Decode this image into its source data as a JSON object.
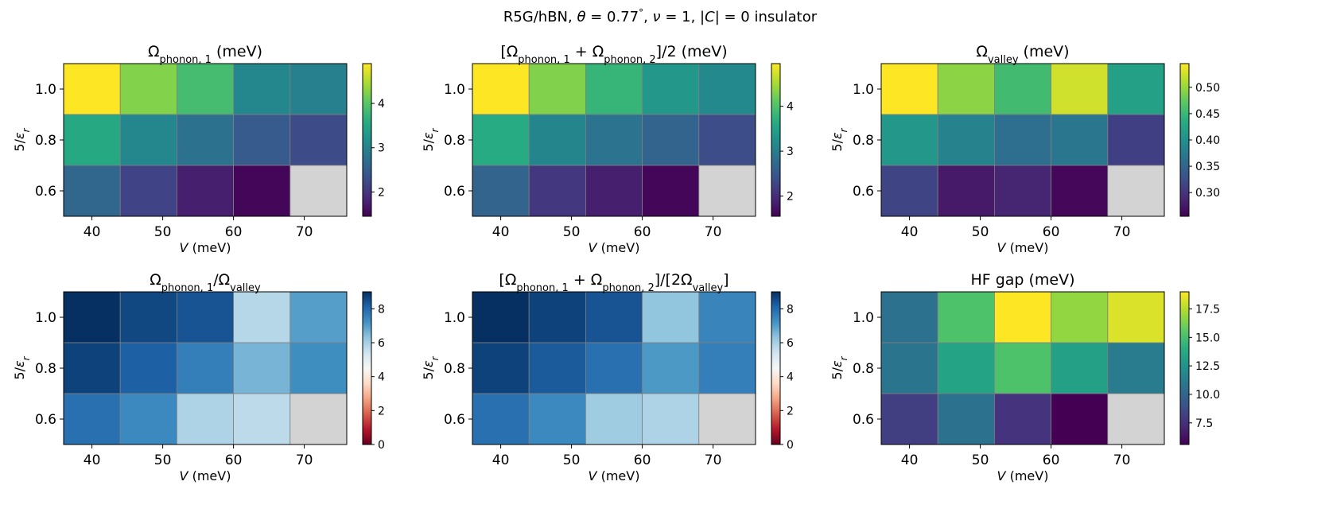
{
  "figure": {
    "title_parts": [
      "R5G/hBN, ",
      "θ",
      " = 0.77",
      "°",
      ",  ",
      "ν",
      " = 1,  |",
      "C",
      "| = 0 insulator"
    ]
  },
  "chart_data": [
    {
      "type": "heatmap",
      "title_main": "Ω",
      "title_sub": "phonon, 1",
      "title_tail": " (meV)",
      "xlabel_italic": "V",
      "xlabel_tail": " (meV)",
      "ylabel_main": "5/",
      "ylabel_italic": "ε",
      "ylabel_sub": "r",
      "x": [
        "40",
        "50",
        "60",
        "70"
      ],
      "x_values": [
        40,
        45,
        55,
        65,
        75
      ],
      "y": [
        "1.0",
        "0.8",
        "0.6"
      ],
      "y_values": [
        1.0,
        0.8,
        0.6
      ],
      "values": [
        [
          4.9,
          4.25,
          3.85,
          3.05,
          2.95
        ],
        [
          3.55,
          3.05,
          2.75,
          2.45,
          2.25
        ],
        [
          2.6,
          2.15,
          1.75,
          1.5,
          null
        ]
      ],
      "colormap": "viridis",
      "vlim": [
        1.45,
        4.9
      ],
      "colorbar_ticks": [
        2,
        3,
        4
      ],
      "colorbar_labels": [
        "2",
        "3",
        "4"
      ]
    },
    {
      "type": "heatmap",
      "title_main": "[Ω",
      "title_sub": "phonon, 1",
      "title_mid": " + Ω",
      "title_sub2": "phonon, 2",
      "title_tail": "]/2 (meV)",
      "xlabel_italic": "V",
      "xlabel_tail": " (meV)",
      "ylabel_main": "5/",
      "ylabel_italic": "ε",
      "ylabel_sub": "r",
      "x": [
        "40",
        "50",
        "60",
        "70"
      ],
      "x_values": [
        40,
        45,
        55,
        65,
        75
      ],
      "y": [
        "1.0",
        "0.8",
        "0.6"
      ],
      "y_values": [
        1.0,
        0.8,
        0.6
      ],
      "values": [
        [
          4.95,
          4.3,
          3.8,
          3.35,
          3.15
        ],
        [
          3.65,
          3.1,
          2.85,
          2.65,
          2.35
        ],
        [
          2.65,
          2.1,
          1.85,
          1.6,
          null
        ]
      ],
      "colormap": "viridis",
      "vlim": [
        1.55,
        4.95
      ],
      "colorbar_ticks": [
        2,
        3,
        4
      ],
      "colorbar_labels": [
        "2",
        "3",
        "4"
      ]
    },
    {
      "type": "heatmap",
      "title_main": "Ω",
      "title_sub": "valley",
      "title_tail": " (meV)",
      "xlabel_italic": "V",
      "xlabel_tail": " (meV)",
      "ylabel_main": "5/",
      "ylabel_italic": "ε",
      "ylabel_sub": "r",
      "x": [
        "40",
        "50",
        "60",
        "70"
      ],
      "x_values": [
        40,
        45,
        55,
        65,
        75
      ],
      "y": [
        "1.0",
        "0.8",
        "0.6"
      ],
      "y_values": [
        1.0,
        0.8,
        0.6
      ],
      "values": [
        [
          0.545,
          0.495,
          0.455,
          0.525,
          0.42
        ],
        [
          0.41,
          0.385,
          0.36,
          0.37,
          0.31
        ],
        [
          0.315,
          0.275,
          0.285,
          0.26,
          null
        ]
      ],
      "colormap": "viridis",
      "vlim": [
        0.255,
        0.545
      ],
      "colorbar_ticks": [
        0.3,
        0.35,
        0.4,
        0.45,
        0.5
      ],
      "colorbar_labels": [
        "0.30",
        "0.35",
        "0.40",
        "0.45",
        "0.50"
      ]
    },
    {
      "type": "heatmap",
      "title_main": "Ω",
      "title_sub": "phonon, 1",
      "title_mid": "/Ω",
      "title_sub2": "valley",
      "title_tail": "",
      "xlabel_italic": "V",
      "xlabel_tail": " (meV)",
      "ylabel_main": "5/",
      "ylabel_italic": "ε",
      "ylabel_sub": "r",
      "x": [
        "40",
        "50",
        "60",
        "70"
      ],
      "x_values": [
        40,
        45,
        55,
        65,
        75
      ],
      "y": [
        "1.0",
        "0.8",
        "0.6"
      ],
      "y_values": [
        1.0,
        0.8,
        0.6
      ],
      "values": [
        [
          9.0,
          8.6,
          8.4,
          5.8,
          7.0
        ],
        [
          8.7,
          8.2,
          7.6,
          6.6,
          7.3
        ],
        [
          7.9,
          7.4,
          5.9,
          5.7,
          null
        ]
      ],
      "colormap": "RdBu",
      "vlim": [
        0,
        9
      ],
      "colorbar_ticks": [
        0,
        2,
        4,
        6,
        8
      ],
      "colorbar_labels": [
        "0",
        "2",
        "4",
        "6",
        "8"
      ]
    },
    {
      "type": "heatmap",
      "title_main": "[Ω",
      "title_sub": "phonon, 1",
      "title_mid": " + Ω",
      "title_sub2": "phonon, 2",
      "title_mid2": "]/[2Ω",
      "title_sub3": "valley",
      "title_tail": "]",
      "xlabel_italic": "V",
      "xlabel_tail": " (meV)",
      "ylabel_main": "5/",
      "ylabel_italic": "ε",
      "ylabel_sub": "r",
      "x": [
        "40",
        "50",
        "60",
        "70"
      ],
      "x_values": [
        40,
        45,
        55,
        65,
        75
      ],
      "y": [
        "1.0",
        "0.8",
        "0.6"
      ],
      "y_values": [
        1.0,
        0.8,
        0.6
      ],
      "values": [
        [
          9.1,
          8.7,
          8.4,
          6.3,
          7.5
        ],
        [
          8.7,
          8.3,
          7.9,
          7.1,
          7.6
        ],
        [
          7.9,
          7.4,
          6.1,
          5.9,
          null
        ]
      ],
      "colormap": "RdBu",
      "vlim": [
        0,
        9
      ],
      "colorbar_ticks": [
        0,
        2,
        4,
        6,
        8
      ],
      "colorbar_labels": [
        "0",
        "2",
        "4",
        "6",
        "8"
      ]
    },
    {
      "type": "heatmap",
      "title_main": "HF gap (meV)",
      "title_tail": "",
      "xlabel_italic": "V",
      "xlabel_tail": " (meV)",
      "ylabel_main": "5/",
      "ylabel_italic": "ε",
      "ylabel_sub": "r",
      "x": [
        "40",
        "50",
        "60",
        "70"
      ],
      "x_values": [
        40,
        45,
        55,
        65,
        75
      ],
      "y": [
        "1.0",
        "0.8",
        "0.6"
      ],
      "y_values": [
        1.0,
        0.8,
        0.6
      ],
      "values": [
        [
          10.6,
          15.2,
          19.0,
          16.8,
          18.3
        ],
        [
          10.8,
          13.4,
          15.2,
          13.2,
          11.2
        ],
        [
          8.1,
          10.7,
          7.6,
          5.6,
          null
        ]
      ],
      "colormap": "viridis",
      "vlim": [
        5.6,
        19.0
      ],
      "colorbar_ticks": [
        7.5,
        10.0,
        12.5,
        15.0,
        17.5
      ],
      "colorbar_labels": [
        "7.5",
        "10.0",
        "12.5",
        "15.0",
        "17.5"
      ]
    }
  ]
}
